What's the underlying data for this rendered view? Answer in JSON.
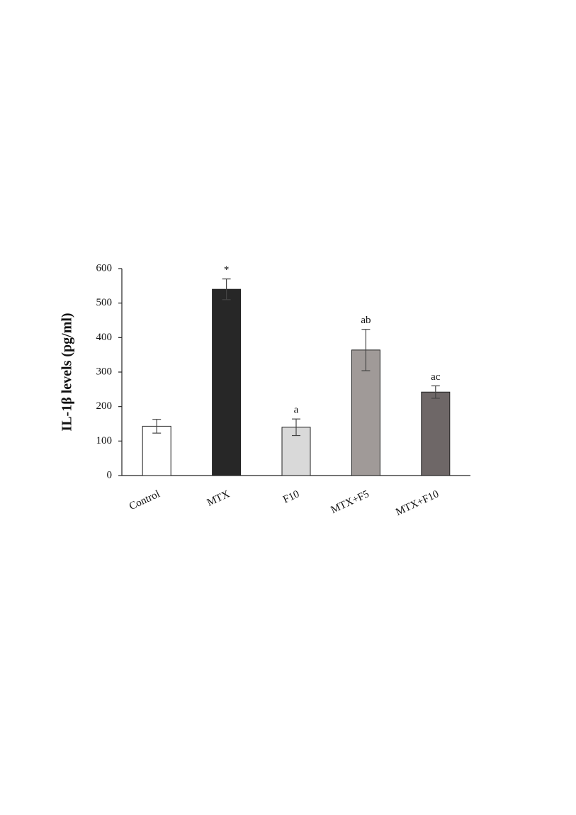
{
  "chart_data": {
    "type": "bar",
    "ylabel": "IL-1β levels (pg/ml)",
    "categories": [
      "Control",
      "MTX",
      "F10",
      "MTX+F5",
      "MTX+F10"
    ],
    "values": [
      143,
      540,
      140,
      364,
      242
    ],
    "errors": [
      20,
      30,
      24,
      60,
      18
    ],
    "annotations": [
      null,
      "*",
      "a",
      "ab",
      "ac"
    ],
    "colors": [
      "#ffffff",
      "#272727",
      "#d9d9d9",
      "#a09a98",
      "#6e6767"
    ],
    "ylim": [
      0,
      600
    ],
    "yticks": [
      0,
      100,
      200,
      300,
      400,
      500,
      600
    ],
    "grid": false
  }
}
